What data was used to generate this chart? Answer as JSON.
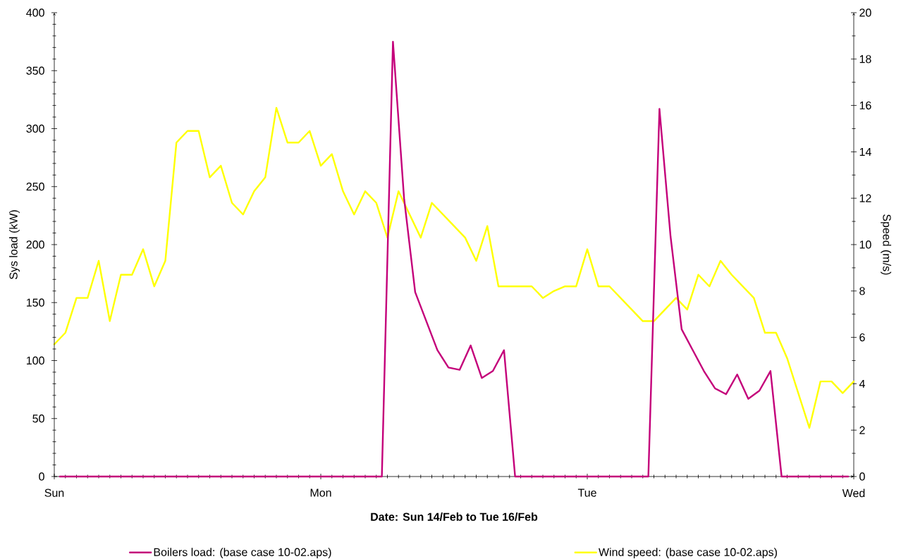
{
  "chart_data": {
    "type": "line",
    "xlabel": "Date: Sun 14/Feb to Tue 16/Feb",
    "ylabel": "Sys load (kW)",
    "y2label": "Speed (m/s)",
    "categories": [
      "Sun",
      null,
      null,
      null,
      null,
      null,
      null,
      null,
      null,
      null,
      null,
      null,
      null,
      null,
      null,
      null,
      null,
      null,
      null,
      null,
      null,
      null,
      null,
      null,
      null,
      null,
      null,
      null,
      null,
      null,
      null,
      null,
      null,
      null,
      null,
      null,
      null,
      null,
      null,
      null,
      null,
      null,
      null,
      null,
      null,
      null,
      null,
      null,
      "Mon",
      null,
      null,
      null,
      null,
      null,
      null,
      null,
      null,
      null,
      null,
      null,
      null,
      null,
      null,
      null,
      null,
      null,
      null,
      null,
      null,
      null,
      null,
      null,
      null,
      null,
      null,
      null,
      null,
      null,
      null,
      null,
      null,
      null,
      null,
      null,
      null,
      null,
      null,
      null,
      null,
      null,
      null,
      null,
      null,
      null,
      null,
      null,
      "Tue",
      null,
      null,
      null,
      null,
      null,
      null,
      null,
      null,
      null,
      null,
      null,
      null,
      null,
      null,
      null,
      null,
      null,
      null,
      null,
      null,
      null,
      null,
      null,
      null,
      null,
      null,
      null,
      null,
      null,
      null,
      null,
      null,
      null,
      null,
      null,
      null,
      null,
      null,
      null,
      null,
      null,
      null,
      null,
      null,
      null,
      null,
      null,
      "Wed"
    ],
    "ylim": [
      0,
      400
    ],
    "yticks": [
      0,
      {
        "value": 10,
        "label": null
      },
      {
        "value": 20,
        "label": null
      },
      {
        "value": 30,
        "label": null
      },
      {
        "value": 40,
        "label": null
      },
      50,
      {
        "value": 60,
        "label": null
      },
      {
        "value": 70,
        "label": null
      },
      {
        "value": 80,
        "label": null
      },
      {
        "value": 90,
        "label": null
      },
      100,
      {
        "value": 110,
        "label": null
      },
      {
        "value": 120,
        "label": null
      },
      {
        "value": 130,
        "label": null
      },
      {
        "value": 140,
        "label": null
      },
      150,
      {
        "value": 160,
        "label": null
      },
      {
        "value": 170,
        "label": null
      },
      {
        "value": 180,
        "label": null
      },
      {
        "value": 190,
        "label": null
      },
      200,
      {
        "value": 210,
        "label": null
      },
      {
        "value": 220,
        "label": null
      },
      {
        "value": 230,
        "label": null
      },
      {
        "value": 240,
        "label": null
      },
      250,
      {
        "value": 260,
        "label": null
      },
      {
        "value": 270,
        "label": null
      },
      {
        "value": 280,
        "label": null
      },
      {
        "value": 290,
        "label": null
      },
      300,
      {
        "value": 310,
        "label": null
      },
      {
        "value": 320,
        "label": null
      },
      {
        "value": 330,
        "label": null
      },
      {
        "value": 340,
        "label": null
      },
      350,
      {
        "value": 360,
        "label": null
      },
      {
        "value": 370,
        "label": null
      },
      {
        "value": 380,
        "label": null
      },
      {
        "value": 390,
        "label": null
      },
      400
    ],
    "y2lim": [
      0,
      20
    ],
    "y2ticks": [
      0,
      {
        "value": 1,
        "label": null
      },
      2,
      {
        "value": 3,
        "label": null
      },
      4,
      {
        "value": 5,
        "label": null
      },
      6,
      {
        "value": 7,
        "label": null
      },
      8,
      {
        "value": 9,
        "label": null
      },
      10,
      {
        "value": 11,
        "label": null
      },
      12,
      {
        "value": 13,
        "label": null
      },
      14,
      {
        "value": 15,
        "label": null
      },
      16,
      {
        "value": 17,
        "label": null
      },
      18,
      {
        "value": 19,
        "label": null
      },
      20
    ],
    "legend": "bottom",
    "series": [
      {
        "name": "Boilers load: (base case 10-02.aps)",
        "color": "#c4007a",
        "values": [
          null,
          0,
          null,
          0,
          null,
          0,
          null,
          0,
          null,
          0,
          null,
          0,
          null,
          0,
          null,
          0,
          null,
          0,
          null,
          0,
          null,
          0,
          null,
          0,
          null,
          0,
          null,
          0,
          null,
          0,
          null,
          0,
          null,
          0,
          null,
          0,
          null,
          0,
          null,
          0,
          null,
          0,
          null,
          0,
          null,
          0,
          null,
          0,
          null,
          0,
          null,
          0,
          null,
          0,
          null,
          0,
          null,
          0,
          null,
          0,
          null,
          375,
          null,
          240,
          null,
          159,
          null,
          134,
          null,
          109,
          null,
          94,
          null,
          92,
          null,
          113,
          null,
          85,
          null,
          91,
          null,
          109,
          null,
          0,
          null,
          0,
          null,
          0,
          null,
          0,
          null,
          0,
          null,
          0,
          null,
          0,
          null,
          0,
          null,
          0,
          null,
          0,
          null,
          0,
          null,
          0,
          null,
          0,
          null,
          317,
          null,
          207,
          null,
          127,
          null,
          109,
          null,
          91,
          null,
          76,
          null,
          71,
          null,
          88,
          null,
          67,
          null,
          74,
          null,
          91,
          null,
          0,
          null,
          0,
          null,
          0,
          null,
          0,
          null,
          0,
          null,
          0,
          null,
          0,
          null
        ]
      },
      {
        "name": "Wind speed: (base case 10-02.aps)",
        "color": "#ffff00",
        "axis": "y2",
        "values": [
          5.7,
          null,
          6.2,
          null,
          7.7,
          null,
          7.7,
          null,
          9.3,
          null,
          6.7,
          null,
          8.7,
          null,
          8.7,
          null,
          9.8,
          null,
          8.2,
          null,
          9.3,
          null,
          14.4,
          null,
          14.9,
          null,
          14.9,
          null,
          12.9,
          null,
          13.4,
          null,
          11.8,
          null,
          11.3,
          null,
          12.3,
          null,
          12.9,
          null,
          15.9,
          null,
          14.4,
          null,
          14.4,
          null,
          14.9,
          null,
          13.4,
          null,
          13.9,
          null,
          12.3,
          null,
          11.3,
          null,
          12.3,
          null,
          11.8,
          null,
          10.3,
          null,
          12.3,
          null,
          11.3,
          null,
          10.3,
          null,
          11.8,
          null,
          11.3,
          null,
          10.8,
          null,
          10.3,
          null,
          9.3,
          null,
          10.8,
          null,
          8.2,
          null,
          8.2,
          null,
          8.2,
          null,
          8.2,
          null,
          7.7,
          null,
          8.0,
          null,
          8.2,
          null,
          8.2,
          null,
          9.8,
          null,
          8.2,
          null,
          8.2,
          null,
          7.7,
          null,
          7.2,
          null,
          6.7,
          null,
          6.7,
          null,
          7.2,
          null,
          7.7,
          null,
          7.2,
          null,
          8.7,
          null,
          8.2,
          null,
          9.3,
          null,
          8.7,
          null,
          8.2,
          null,
          7.7,
          null,
          6.2,
          null,
          6.2,
          null,
          5.1,
          null,
          3.6,
          null,
          2.1,
          null,
          4.1,
          null,
          4.1,
          null,
          3.6,
          null,
          4.1
        ]
      }
    ]
  }
}
